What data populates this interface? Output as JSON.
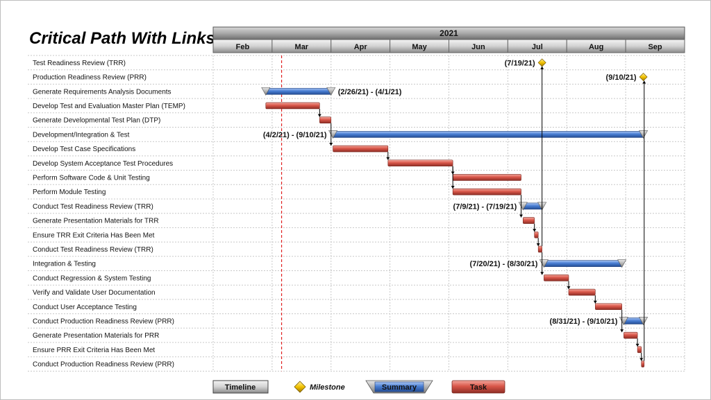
{
  "chart_data": {
    "type": "gantt",
    "title": "Critical Path With Links",
    "year": "2021",
    "months": [
      "Feb",
      "Mar",
      "Apr",
      "May",
      "Jun",
      "Jul",
      "Aug",
      "Sep"
    ],
    "today": "2021-03-06",
    "tasks": [
      {
        "name": "Test Readiness Review (TRR)",
        "kind": "milestone",
        "start": "2021-07-19",
        "end": "2021-07-19",
        "label": "(7/19/21)"
      },
      {
        "name": "Production Readiness Review (PRR)",
        "kind": "milestone",
        "start": "2021-09-10",
        "end": "2021-09-10",
        "label": "(9/10/21)"
      },
      {
        "name": "Generate Requirements Analysis Documents",
        "kind": "summary",
        "start": "2021-02-26",
        "end": "2021-04-01",
        "label": "(2/26/21) - (4/1/21)",
        "label_side": "right"
      },
      {
        "name": "Develop Test and Evaluation Master Plan (TEMP)",
        "kind": "task",
        "start": "2021-02-26",
        "end": "2021-03-26"
      },
      {
        "name": "Generate Developmental Test Plan (DTP)",
        "kind": "task",
        "start": "2021-03-26",
        "end": "2021-04-01"
      },
      {
        "name": "Development/Integration & Test",
        "kind": "summary",
        "start": "2021-04-02",
        "end": "2021-09-10",
        "label": "(4/2/21) - (9/10/21)",
        "label_side": "left"
      },
      {
        "name": "Develop Test Case Specifications",
        "kind": "task",
        "start": "2021-04-02",
        "end": "2021-04-30"
      },
      {
        "name": "Develop System Acceptance Test Procedures",
        "kind": "task",
        "start": "2021-04-30",
        "end": "2021-06-03"
      },
      {
        "name": "Perform Software Code & Unit Testing",
        "kind": "task",
        "start": "2021-06-03",
        "end": "2021-07-08"
      },
      {
        "name": "Perform Module Testing",
        "kind": "task",
        "start": "2021-06-03",
        "end": "2021-07-08"
      },
      {
        "name": "Conduct Test Readiness Review (TRR)",
        "kind": "summary",
        "start": "2021-07-09",
        "end": "2021-07-19",
        "label": "(7/9/21) - (7/19/21)",
        "label_side": "left"
      },
      {
        "name": "Generate Presentation Materials for TRR",
        "kind": "task",
        "start": "2021-07-09",
        "end": "2021-07-15"
      },
      {
        "name": "Ensure TRR Exit Criteria Has Been Met",
        "kind": "task",
        "start": "2021-07-15",
        "end": "2021-07-17"
      },
      {
        "name": "Conduct Test Readiness Review (TRR)",
        "kind": "task",
        "start": "2021-07-17",
        "end": "2021-07-19"
      },
      {
        "name": "Integration & Testing",
        "kind": "summary",
        "start": "2021-07-20",
        "end": "2021-08-30",
        "label": "(7/20/21) - (8/30/21)",
        "label_side": "left"
      },
      {
        "name": "Conduct Regression & System Testing",
        "kind": "task",
        "start": "2021-07-20",
        "end": "2021-08-02"
      },
      {
        "name": "Verify and Validate User Documentation",
        "kind": "task",
        "start": "2021-08-02",
        "end": "2021-08-16"
      },
      {
        "name": "Conduct User Acceptance Testing",
        "kind": "task",
        "start": "2021-08-16",
        "end": "2021-08-30"
      },
      {
        "name": "Conduct Production Readiness Review (PRR)",
        "kind": "summary",
        "start": "2021-08-31",
        "end": "2021-09-10",
        "label": "(8/31/21) - (9/10/21)",
        "label_side": "left"
      },
      {
        "name": "Generate Presentation Materials for PRR",
        "kind": "task",
        "start": "2021-08-31",
        "end": "2021-09-07"
      },
      {
        "name": "Ensure PRR Exit Criteria Has Been Met",
        "kind": "task",
        "start": "2021-09-07",
        "end": "2021-09-09"
      },
      {
        "name": "Conduct Production Readiness Review (PRR)",
        "kind": "task",
        "start": "2021-09-09",
        "end": "2021-09-10"
      }
    ],
    "links": [
      [
        3,
        4
      ],
      [
        4,
        6
      ],
      [
        6,
        7
      ],
      [
        7,
        8
      ],
      [
        7,
        9
      ],
      [
        9,
        11
      ],
      [
        11,
        12
      ],
      [
        12,
        13
      ],
      [
        13,
        0
      ],
      [
        13,
        15
      ],
      [
        15,
        16
      ],
      [
        16,
        17
      ],
      [
        17,
        19
      ],
      [
        19,
        20
      ],
      [
        20,
        21
      ],
      [
        21,
        1
      ]
    ],
    "legend": [
      {
        "kind": "timeline",
        "label": "Timeline"
      },
      {
        "kind": "milestone",
        "label": "Milestone"
      },
      {
        "kind": "summary",
        "label": "Summary"
      },
      {
        "kind": "task",
        "label": "Task"
      }
    ],
    "colors": {
      "task": "#d9574a",
      "summary": "#4a7fd4",
      "milestone": "#f2c200",
      "timeline": "#a9a9a9",
      "today_line": "#e02020",
      "grid": "#c8c8c8"
    }
  }
}
